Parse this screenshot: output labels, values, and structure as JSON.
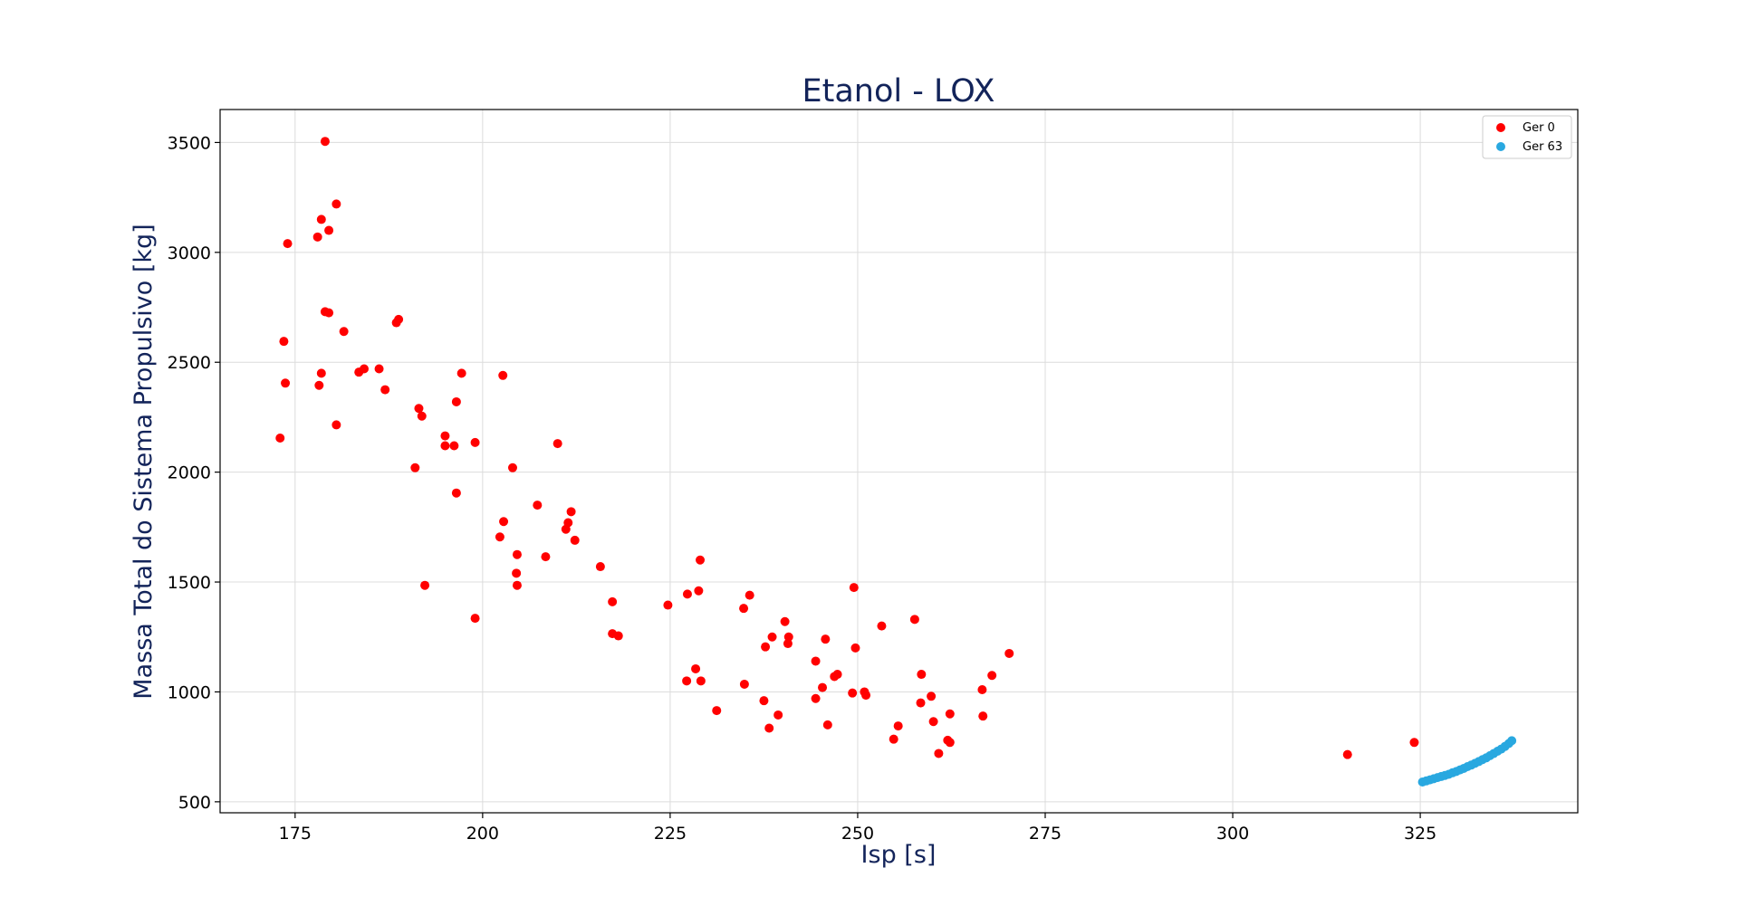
{
  "chart_data": {
    "type": "scatter",
    "title": "Etanol - LOX",
    "xlabel": "Isp [s]",
    "ylabel": "Massa Total do Sistema Propulsivo [kg]",
    "xlim": [
      165,
      346
    ],
    "ylim": [
      450,
      3650
    ],
    "xticks": [
      175,
      200,
      225,
      250,
      275,
      300,
      325
    ],
    "yticks": [
      500,
      1000,
      1500,
      2000,
      2500,
      3000,
      3500
    ],
    "grid": true,
    "legend_position": "top-right",
    "series": [
      {
        "name": "Ger 0",
        "color": "#ff0000",
        "points": [
          [
            179,
            3505
          ],
          [
            180.5,
            3220
          ],
          [
            178.5,
            3150
          ],
          [
            174,
            3040
          ],
          [
            178,
            3070
          ],
          [
            179.5,
            3100
          ],
          [
            179,
            2730
          ],
          [
            179.5,
            2725
          ],
          [
            181.5,
            2640
          ],
          [
            188.5,
            2680
          ],
          [
            188.8,
            2695
          ],
          [
            173.5,
            2595
          ],
          [
            178.5,
            2450
          ],
          [
            183.5,
            2455
          ],
          [
            184.2,
            2470
          ],
          [
            186.2,
            2470
          ],
          [
            197.2,
            2450
          ],
          [
            202.7,
            2440
          ],
          [
            173.7,
            2405
          ],
          [
            178.2,
            2395
          ],
          [
            187,
            2375
          ],
          [
            196.5,
            2320
          ],
          [
            191.5,
            2290
          ],
          [
            191.9,
            2255
          ],
          [
            180.5,
            2215
          ],
          [
            173,
            2155
          ],
          [
            195,
            2165
          ],
          [
            195,
            2120
          ],
          [
            196.2,
            2120
          ],
          [
            199,
            2135
          ],
          [
            210,
            2130
          ],
          [
            191,
            2020
          ],
          [
            204,
            2020
          ],
          [
            196.5,
            1905
          ],
          [
            207.3,
            1850
          ],
          [
            211.8,
            1820
          ],
          [
            202.8,
            1775
          ],
          [
            211.4,
            1770
          ],
          [
            211.1,
            1740
          ],
          [
            202.3,
            1705
          ],
          [
            212.3,
            1690
          ],
          [
            204.6,
            1625
          ],
          [
            208.4,
            1615
          ],
          [
            229,
            1600
          ],
          [
            215.7,
            1570
          ],
          [
            204.5,
            1540
          ],
          [
            204.6,
            1485
          ],
          [
            192.3,
            1485
          ],
          [
            249.5,
            1475
          ],
          [
            228.8,
            1460
          ],
          [
            227.3,
            1445
          ],
          [
            235.6,
            1440
          ],
          [
            217.3,
            1410
          ],
          [
            224.7,
            1395
          ],
          [
            234.8,
            1380
          ],
          [
            199,
            1335
          ],
          [
            257.6,
            1330
          ],
          [
            240.3,
            1320
          ],
          [
            253.2,
            1300
          ],
          [
            217.3,
            1265
          ],
          [
            218.1,
            1255
          ],
          [
            238.6,
            1250
          ],
          [
            240.8,
            1250
          ],
          [
            245.7,
            1240
          ],
          [
            240.7,
            1220
          ],
          [
            237.7,
            1205
          ],
          [
            249.7,
            1200
          ],
          [
            270.2,
            1175
          ],
          [
            244.4,
            1140
          ],
          [
            228.4,
            1105
          ],
          [
            247.3,
            1080
          ],
          [
            258.5,
            1080
          ],
          [
            267.9,
            1075
          ],
          [
            246.9,
            1070
          ],
          [
            227.2,
            1050
          ],
          [
            229.1,
            1050
          ],
          [
            234.9,
            1035
          ],
          [
            245.3,
            1020
          ],
          [
            266.6,
            1010
          ],
          [
            250.9,
            1000
          ],
          [
            249.3,
            995
          ],
          [
            251.1,
            985
          ],
          [
            259.8,
            980
          ],
          [
            244.4,
            970
          ],
          [
            237.5,
            960
          ],
          [
            258.4,
            950
          ],
          [
            231.2,
            915
          ],
          [
            262.3,
            900
          ],
          [
            239.4,
            895
          ],
          [
            266.7,
            890
          ],
          [
            260.1,
            865
          ],
          [
            246,
            850
          ],
          [
            255.4,
            845
          ],
          [
            238.2,
            835
          ],
          [
            254.8,
            785
          ],
          [
            262,
            780
          ],
          [
            262.3,
            770
          ],
          [
            324.2,
            770
          ],
          [
            260.8,
            720
          ],
          [
            315.3,
            715
          ]
        ]
      },
      {
        "name": "Ger 63",
        "color": "#29a8e0",
        "points": [
          [
            325.3,
            590
          ],
          [
            325.8,
            595
          ],
          [
            326.3,
            600
          ],
          [
            326.8,
            605
          ],
          [
            327.3,
            610
          ],
          [
            327.8,
            615
          ],
          [
            328.3,
            620
          ],
          [
            328.8,
            625
          ],
          [
            329.3,
            632
          ],
          [
            329.8,
            638
          ],
          [
            330.3,
            645
          ],
          [
            330.8,
            652
          ],
          [
            331.3,
            660
          ],
          [
            331.8,
            667
          ],
          [
            332.3,
            675
          ],
          [
            332.8,
            683
          ],
          [
            333.3,
            692
          ],
          [
            333.8,
            700
          ],
          [
            334.3,
            710
          ],
          [
            334.8,
            720
          ],
          [
            335.3,
            730
          ],
          [
            335.8,
            740
          ],
          [
            336.3,
            752
          ],
          [
            336.8,
            765
          ],
          [
            337.2,
            778
          ]
        ]
      }
    ]
  }
}
